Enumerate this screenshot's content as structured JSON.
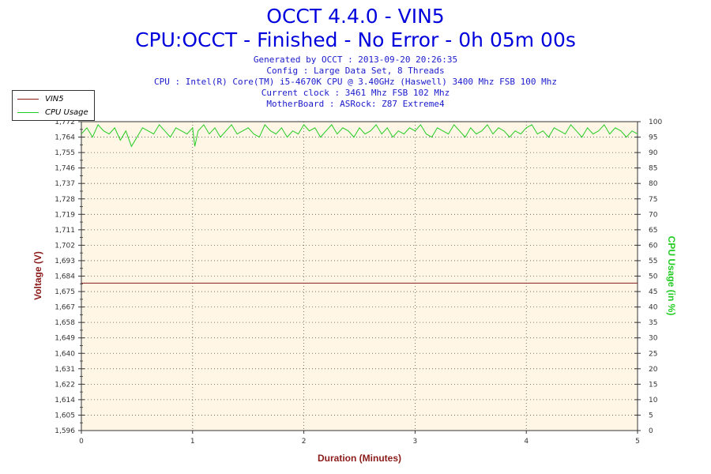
{
  "header": {
    "title": "OCCT 4.4.0 - VIN5",
    "subtitle": "CPU:OCCT - Finished - No Error - 0h 05m 00s",
    "info_lines": [
      "Generated by OCCT : 2013-09-20 20:26:35",
      "Config : Large Data Set, 8 Threads",
      "CPU : Intel(R) Core(TM) i5-4670K CPU @ 3.40GHz (Haswell) 3400 Mhz FSB 100 Mhz",
      "Current clock : 3461 Mhz FSB 102 Mhz",
      "MotherBoard : ASRock: Z87 Extreme4"
    ]
  },
  "legend": [
    {
      "name": "VIN5",
      "color": "#8b1a1a"
    },
    {
      "name": "CPU Usage",
      "color": "#22cc22"
    }
  ],
  "chart_data": {
    "type": "line",
    "xlabel": "Duration (Minutes)",
    "ylabel": "Voltage (V)",
    "y2label": "CPU Usage (in %)",
    "xlim": [
      0,
      5
    ],
    "ylim": [
      1.596,
      1.772
    ],
    "y2lim": [
      0,
      100
    ],
    "x_ticks": [
      "0",
      "1",
      "2",
      "3",
      "4",
      "5"
    ],
    "y_ticks": [
      "1,596",
      "1,605",
      "1,614",
      "1,622",
      "1,631",
      "1,640",
      "1,649",
      "1,658",
      "1,667",
      "1,675",
      "1,684",
      "1,693",
      "1,702",
      "1,711",
      "1,719",
      "1,728",
      "1,737",
      "1,746",
      "1,755",
      "1,764",
      "1,772"
    ],
    "y2_ticks": [
      "0",
      "5",
      "10",
      "15",
      "20",
      "25",
      "30",
      "35",
      "40",
      "45",
      "50",
      "55",
      "60",
      "65",
      "70",
      "75",
      "80",
      "85",
      "90",
      "95",
      "100"
    ],
    "grid": true,
    "legend_position": "top-left",
    "series": [
      {
        "name": "VIN5",
        "axis": "left",
        "color": "#8b1a1a",
        "x": [
          0,
          5
        ],
        "y": [
          1.68,
          1.68
        ]
      },
      {
        "name": "CPU Usage",
        "axis": "right",
        "color": "#22cc22",
        "x": [
          0,
          0.05,
          0.1,
          0.15,
          0.2,
          0.25,
          0.3,
          0.35,
          0.4,
          0.45,
          0.5,
          0.55,
          0.6,
          0.65,
          0.7,
          0.75,
          0.8,
          0.85,
          0.9,
          0.95,
          1.0,
          1.02,
          1.05,
          1.1,
          1.15,
          1.2,
          1.25,
          1.3,
          1.35,
          1.4,
          1.45,
          1.5,
          1.55,
          1.6,
          1.65,
          1.7,
          1.75,
          1.8,
          1.85,
          1.9,
          1.95,
          2.0,
          2.05,
          2.1,
          2.15,
          2.2,
          2.25,
          2.3,
          2.35,
          2.4,
          2.45,
          2.5,
          2.55,
          2.6,
          2.65,
          2.7,
          2.75,
          2.8,
          2.85,
          2.9,
          2.95,
          3.0,
          3.05,
          3.1,
          3.15,
          3.2,
          3.25,
          3.3,
          3.35,
          3.4,
          3.45,
          3.5,
          3.55,
          3.6,
          3.65,
          3.7,
          3.75,
          3.8,
          3.85,
          3.9,
          3.95,
          4.0,
          4.05,
          4.1,
          4.15,
          4.2,
          4.25,
          4.3,
          4.35,
          4.4,
          4.45,
          4.5,
          4.55,
          4.6,
          4.65,
          4.7,
          4.75,
          4.8,
          4.85,
          4.9,
          4.95,
          5.0
        ],
        "y": [
          96,
          98,
          95,
          99,
          97,
          96,
          98,
          94,
          97,
          92,
          95,
          98,
          97,
          96,
          99,
          97,
          95,
          98,
          97,
          96,
          98,
          92,
          97,
          99,
          96,
          98,
          95,
          97,
          99,
          96,
          97,
          98,
          96,
          95,
          99,
          97,
          96,
          98,
          95,
          97,
          96,
          99,
          97,
          98,
          95,
          97,
          99,
          96,
          98,
          97,
          95,
          98,
          96,
          97,
          99,
          96,
          98,
          95,
          97,
          96,
          98,
          97,
          99,
          96,
          95,
          98,
          97,
          96,
          99,
          97,
          95,
          98,
          96,
          97,
          99,
          96,
          98,
          97,
          95,
          97,
          96,
          98,
          99,
          96,
          97,
          95,
          98,
          97,
          96,
          99,
          97,
          95,
          98,
          96,
          97,
          99,
          96,
          98,
          97,
          95,
          97,
          96
        ]
      }
    ]
  }
}
